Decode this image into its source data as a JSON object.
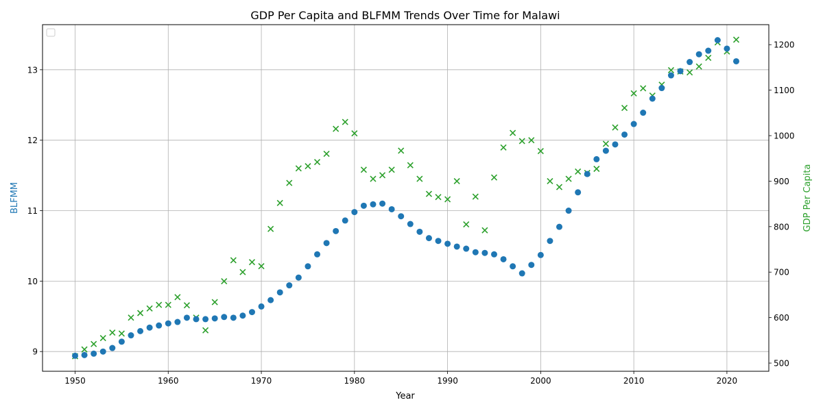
{
  "chart_data": {
    "type": "scatter",
    "title": "GDP Per Capita and BLFMM Trends Over Time for Malawi",
    "xlabel": "Year",
    "ylabel_left": "BLFMM",
    "ylabel_right": "GDP Per Capita",
    "xlim": [
      1946.5,
      2024.5
    ],
    "ylim_left": [
      8.72,
      13.64
    ],
    "ylim_right": [
      482,
      1244
    ],
    "x_ticks": [
      1950,
      1960,
      1970,
      1980,
      1990,
      2000,
      2010,
      2020
    ],
    "y_ticks_left": [
      9,
      10,
      11,
      12,
      13
    ],
    "y_ticks_right": [
      500,
      600,
      700,
      800,
      900,
      1000,
      1100,
      1200
    ],
    "grid": true,
    "legend": "top-left",
    "colors": {
      "blfmm": "#1f77b4",
      "gdp": "#2ca02c"
    },
    "x": [
      1950,
      1951,
      1952,
      1953,
      1954,
      1955,
      1956,
      1957,
      1958,
      1959,
      1960,
      1961,
      1962,
      1963,
      1964,
      1965,
      1966,
      1967,
      1968,
      1969,
      1970,
      1971,
      1972,
      1973,
      1974,
      1975,
      1976,
      1977,
      1978,
      1979,
      1980,
      1981,
      1982,
      1983,
      1984,
      1985,
      1986,
      1987,
      1988,
      1989,
      1990,
      1991,
      1992,
      1993,
      1994,
      1995,
      1996,
      1997,
      1998,
      1999,
      2000,
      2001,
      2002,
      2003,
      2004,
      2005,
      2006,
      2007,
      2008,
      2009,
      2010,
      2011,
      2012,
      2013,
      2014,
      2015,
      2016,
      2017,
      2018,
      2019,
      2020,
      2021
    ],
    "series": [
      {
        "key": "blfmm",
        "axis": "left",
        "marker": "circle",
        "values": [
          8.94,
          8.95,
          8.97,
          9.0,
          9.05,
          9.14,
          9.23,
          9.29,
          9.34,
          9.37,
          9.4,
          9.42,
          9.48,
          9.46,
          9.46,
          9.47,
          9.49,
          9.48,
          9.51,
          9.56,
          9.64,
          9.73,
          9.84,
          9.94,
          10.05,
          10.21,
          10.38,
          10.54,
          10.71,
          10.86,
          10.98,
          11.07,
          11.09,
          11.1,
          11.02,
          10.92,
          10.81,
          10.7,
          10.61,
          10.57,
          10.53,
          10.49,
          10.46,
          10.41,
          10.4,
          10.38,
          10.31,
          10.21,
          10.11,
          10.23,
          10.37,
          10.57,
          10.77,
          11.0,
          11.26,
          11.52,
          11.73,
          11.85,
          11.94,
          12.08,
          12.23,
          12.39,
          12.59,
          12.74,
          12.92,
          12.98,
          13.11,
          13.22,
          13.27,
          13.42,
          13.3,
          13.12
        ]
      },
      {
        "key": "gdp",
        "axis": "right",
        "marker": "x",
        "values": [
          515,
          530,
          542,
          555,
          567,
          565,
          600,
          610,
          620,
          628,
          628,
          645,
          627,
          600,
          572,
          634,
          680,
          726,
          700,
          722,
          713,
          795,
          852,
          896,
          928,
          933,
          942,
          960,
          1015,
          1030,
          1005,
          925,
          905,
          913,
          925,
          967,
          935,
          905,
          872,
          865,
          860,
          900,
          805,
          866,
          792,
          908,
          974,
          1006,
          988,
          990,
          966,
          900,
          887,
          905,
          921,
          918,
          927,
          982,
          1018,
          1061,
          1093,
          1104,
          1088,
          1112,
          1144,
          1141,
          1139,
          1152,
          1171,
          1205,
          1185,
          1211
        ]
      }
    ]
  }
}
